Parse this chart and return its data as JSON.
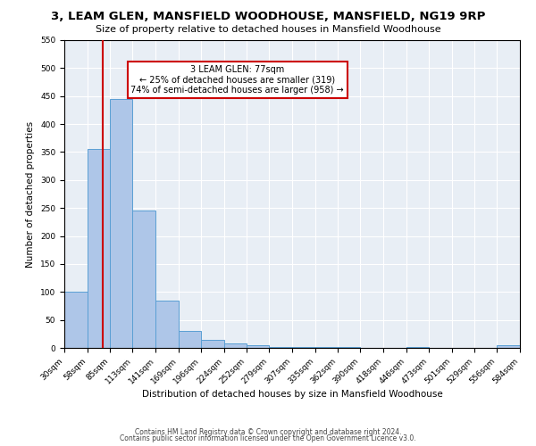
{
  "title": "3, LEAM GLEN, MANSFIELD WOODHOUSE, MANSFIELD, NG19 9RP",
  "subtitle": "Size of property relative to detached houses in Mansfield Woodhouse",
  "xlabel": "Distribution of detached houses by size in Mansfield Woodhouse",
  "ylabel": "Number of detached properties",
  "footer_line1": "Contains HM Land Registry data © Crown copyright and database right 2024.",
  "footer_line2": "Contains public sector information licensed under the Open Government Licence v3.0.",
  "bin_edges": [
    30,
    58,
    85,
    113,
    141,
    169,
    196,
    224,
    252,
    279,
    307,
    335,
    362,
    390,
    418,
    446,
    473,
    501,
    529,
    556,
    584
  ],
  "bar_heights": [
    100,
    355,
    445,
    245,
    85,
    30,
    15,
    8,
    5,
    2,
    2,
    1,
    1,
    0,
    0,
    1,
    0,
    0,
    0,
    5
  ],
  "bar_color": "#aec6e8",
  "bar_edgecolor": "#5a9fd4",
  "property_size": 77,
  "vline_color": "#cc0000",
  "annotation_line1": "3 LEAM GLEN: 77sqm",
  "annotation_line2": "← 25% of detached houses are smaller (319)",
  "annotation_line3": "74% of semi-detached houses are larger (958) →",
  "annotation_box_color": "#ffffff",
  "annotation_box_edgecolor": "#cc0000",
  "ylim": [
    0,
    550
  ],
  "background_color": "#e8eef5",
  "grid_color": "#ffffff",
  "title_fontsize": 9.5,
  "subtitle_fontsize": 8,
  "axis_label_fontsize": 7.5,
  "tick_fontsize": 6.5,
  "annotation_fontsize": 7,
  "footer_fontsize": 5.5
}
